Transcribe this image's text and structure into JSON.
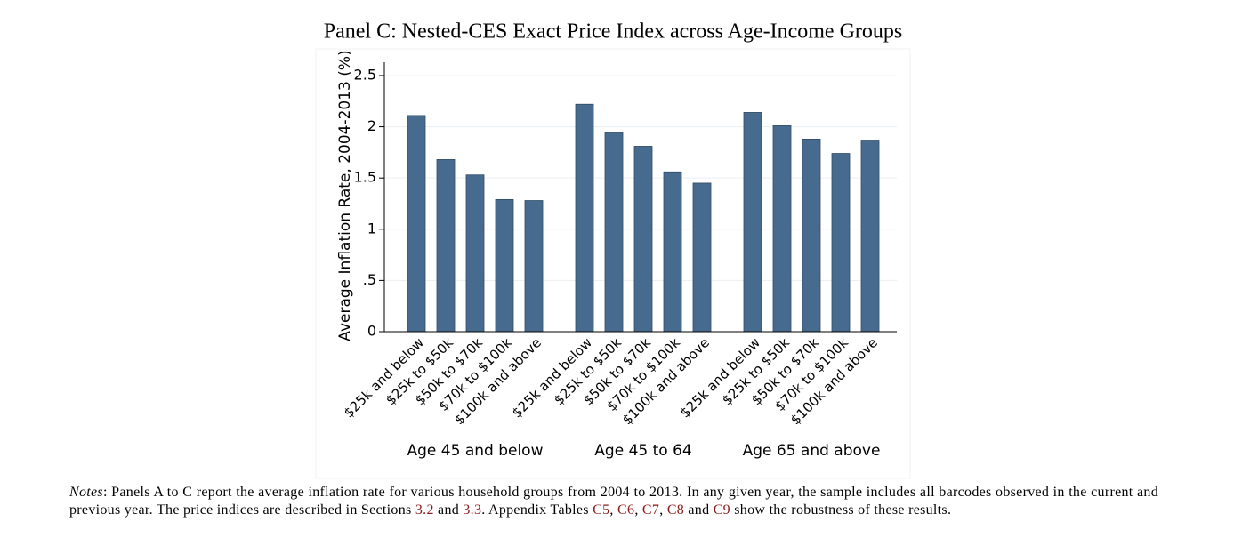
{
  "chart_data": {
    "type": "bar",
    "title": "Panel C: Nested-CES Exact Price Index across Age-Income Groups",
    "y_label": "Average Inflation Rate, 2004-2013 (%)",
    "color": "#476b8e",
    "ylim": [
      0,
      2.63
    ],
    "yticks": [
      0,
      {
        "value": 0.5,
        "label": ".5"
      },
      1,
      1.5,
      2,
      2.5
    ],
    "grid": true,
    "groups": [
      {
        "label": "Age 45 and below",
        "categories": [
          "$25k and below",
          "$25k to $50k",
          "$50k to $70k",
          "$70k to $100k",
          "$100k and above"
        ],
        "values": [
          2.11,
          1.68,
          1.53,
          1.29,
          1.28
        ]
      },
      {
        "label": "Age 45 to 64",
        "categories": [
          "$25k and below",
          "$25k to $50k",
          "$50k to $70k",
          "$70k to $100k",
          "$100k and above"
        ],
        "values": [
          2.22,
          1.94,
          1.81,
          1.56,
          1.45
        ]
      },
      {
        "label": "Age 65 and above",
        "categories": [
          "$25k and below",
          "$25k to $50k",
          "$50k to $70k",
          "$70k to $100k",
          "$100k and above"
        ],
        "values": [
          2.14,
          2.01,
          1.88,
          1.74,
          1.87
        ]
      }
    ]
  },
  "notes": {
    "lead": "Notes",
    "parts": [
      {
        "text": ": Panels A to C report the average inflation rate for various household groups from 2004 to 2013. In any given year, the sample includes all barcodes observed in the current and previous year. The price indices are described in Sections "
      },
      {
        "text": "3.2",
        "ref": true
      },
      {
        "text": " and "
      },
      {
        "text": "3.3",
        "ref": true
      },
      {
        "text": ". Appendix Tables "
      },
      {
        "text": "C5",
        "ref": true
      },
      {
        "text": ", "
      },
      {
        "text": "C6",
        "ref": true
      },
      {
        "text": ", "
      },
      {
        "text": "C7",
        "ref": true
      },
      {
        "text": ", "
      },
      {
        "text": "C8",
        "ref": true
      },
      {
        "text": " and "
      },
      {
        "text": "C9",
        "ref": true
      },
      {
        "text": " show the robustness of these results."
      }
    ]
  }
}
